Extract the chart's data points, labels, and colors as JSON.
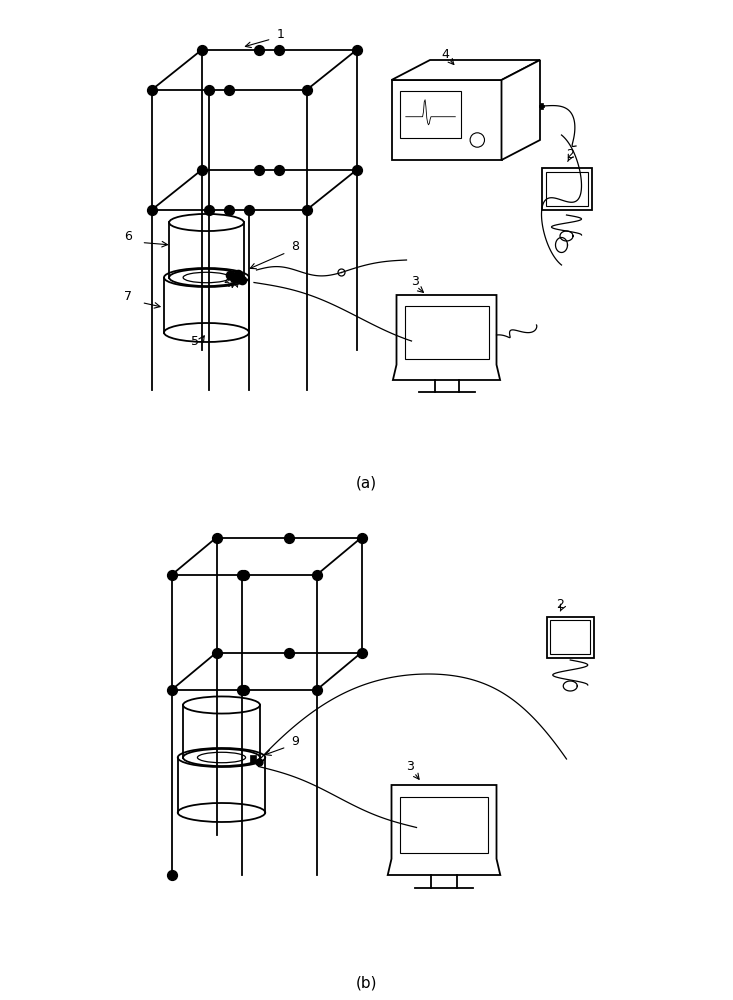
{
  "fig_width": 7.33,
  "fig_height": 10.0,
  "bg_color": "#ffffff",
  "line_color": "#000000",
  "label_a": "(a)",
  "label_b": "(b)",
  "label_fontsize": 11,
  "number_fontsize": 9,
  "lw": 1.3,
  "dot_size": 50
}
